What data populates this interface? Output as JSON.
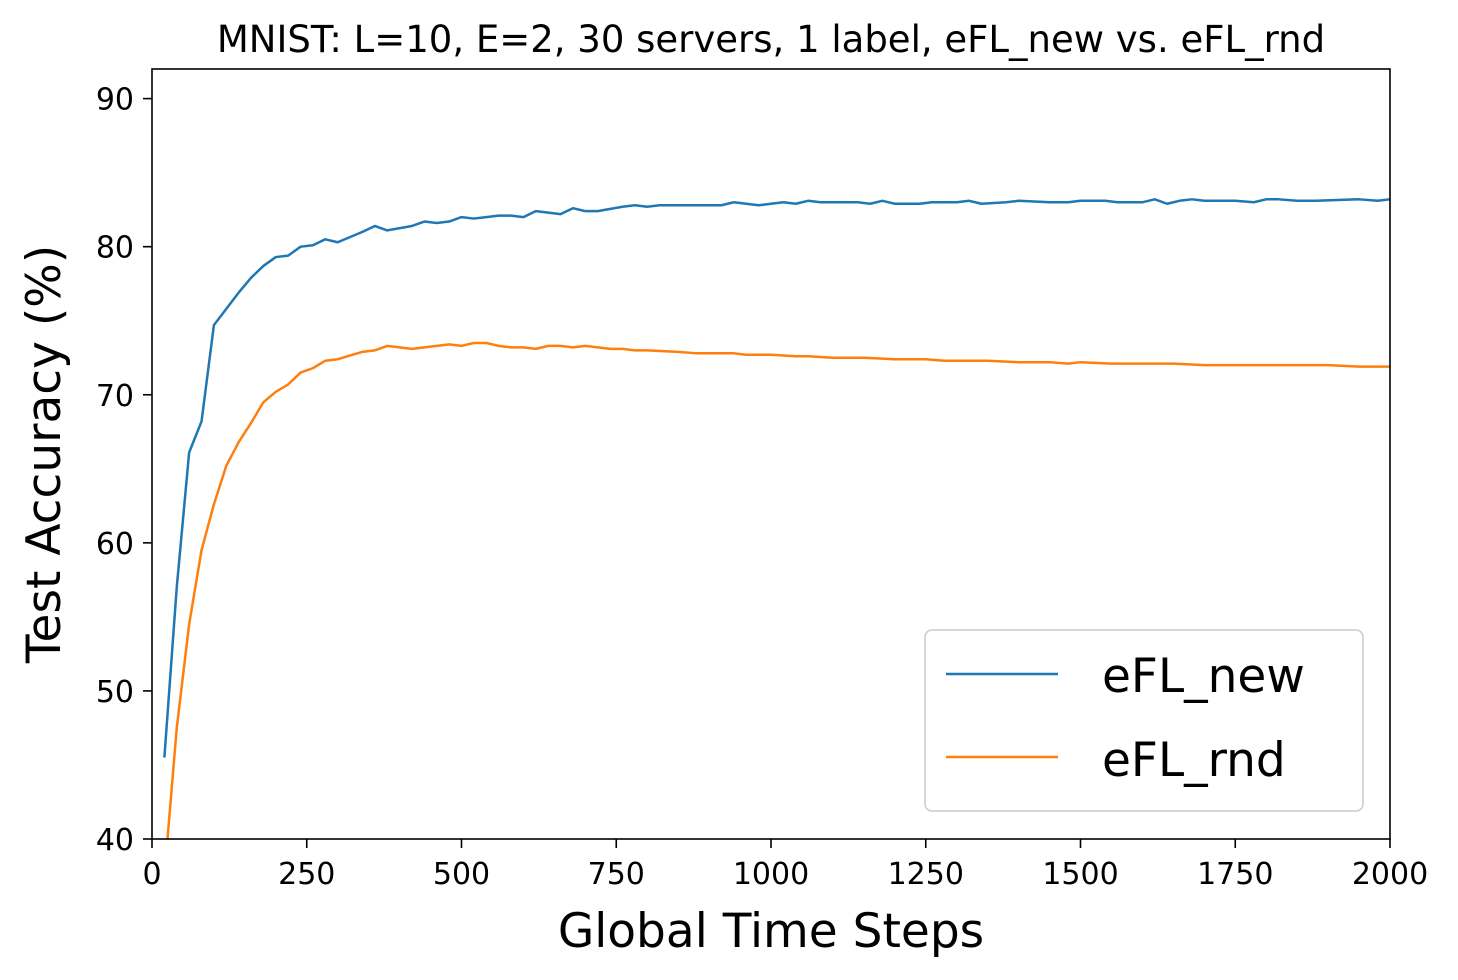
{
  "chart_data": {
    "type": "line",
    "title": "MNIST: L=10, E=2, 30 servers, 1 label, eFL_new vs. eFL_rnd",
    "xlabel": "Global Time Steps",
    "ylabel": "Test Accuracy (%)",
    "xlim": [
      0,
      2000
    ],
    "ylim": [
      40,
      92
    ],
    "xticks": [
      0,
      250,
      500,
      750,
      1000,
      1250,
      1500,
      1750,
      2000
    ],
    "yticks": [
      40,
      50,
      60,
      70,
      80,
      90
    ],
    "grid": false,
    "legend_position": "lower-right",
    "series": [
      {
        "name": "eFL_new",
        "color": "#1f77b4",
        "points": [
          [
            20,
            45.5
          ],
          [
            40,
            57.0
          ],
          [
            60,
            66.1
          ],
          [
            80,
            68.2
          ],
          [
            100,
            74.7
          ],
          [
            120,
            75.8
          ],
          [
            140,
            76.9
          ],
          [
            160,
            77.9
          ],
          [
            180,
            78.7
          ],
          [
            200,
            79.3
          ],
          [
            220,
            79.4
          ],
          [
            240,
            80.0
          ],
          [
            260,
            80.1
          ],
          [
            280,
            80.5
          ],
          [
            300,
            80.3
          ],
          [
            340,
            81.0
          ],
          [
            360,
            81.4
          ],
          [
            380,
            81.1
          ],
          [
            420,
            81.4
          ],
          [
            440,
            81.7
          ],
          [
            460,
            81.6
          ],
          [
            480,
            81.7
          ],
          [
            500,
            82.0
          ],
          [
            520,
            81.9
          ],
          [
            540,
            82.0
          ],
          [
            560,
            82.1
          ],
          [
            580,
            82.1
          ],
          [
            600,
            82.0
          ],
          [
            620,
            82.4
          ],
          [
            640,
            82.3
          ],
          [
            660,
            82.2
          ],
          [
            680,
            82.6
          ],
          [
            700,
            82.4
          ],
          [
            720,
            82.4
          ],
          [
            760,
            82.7
          ],
          [
            780,
            82.8
          ],
          [
            800,
            82.7
          ],
          [
            820,
            82.8
          ],
          [
            900,
            82.8
          ],
          [
            920,
            82.8
          ],
          [
            940,
            83.0
          ],
          [
            980,
            82.8
          ],
          [
            1000,
            82.9
          ],
          [
            1020,
            83.0
          ],
          [
            1040,
            82.9
          ],
          [
            1060,
            83.1
          ],
          [
            1080,
            83.0
          ],
          [
            1120,
            83.0
          ],
          [
            1140,
            83.0
          ],
          [
            1160,
            82.9
          ],
          [
            1180,
            83.1
          ],
          [
            1200,
            82.9
          ],
          [
            1240,
            82.9
          ],
          [
            1260,
            83.0
          ],
          [
            1300,
            83.0
          ],
          [
            1320,
            83.1
          ],
          [
            1340,
            82.9
          ],
          [
            1380,
            83.0
          ],
          [
            1400,
            83.1
          ],
          [
            1450,
            83.0
          ],
          [
            1480,
            83.0
          ],
          [
            1500,
            83.1
          ],
          [
            1540,
            83.1
          ],
          [
            1560,
            83.0
          ],
          [
            1600,
            83.0
          ],
          [
            1620,
            83.2
          ],
          [
            1640,
            82.9
          ],
          [
            1660,
            83.1
          ],
          [
            1680,
            83.2
          ],
          [
            1700,
            83.1
          ],
          [
            1750,
            83.1
          ],
          [
            1780,
            83.0
          ],
          [
            1800,
            83.2
          ],
          [
            1820,
            83.2
          ],
          [
            1850,
            83.1
          ],
          [
            1880,
            83.1
          ],
          [
            1950,
            83.2
          ],
          [
            1980,
            83.1
          ],
          [
            2000,
            83.2
          ]
        ]
      },
      {
        "name": "eFL_rnd",
        "color": "#ff7f0e",
        "points": [
          [
            25,
            40.0
          ],
          [
            40,
            47.5
          ],
          [
            60,
            54.5
          ],
          [
            80,
            59.5
          ],
          [
            100,
            62.6
          ],
          [
            120,
            65.2
          ],
          [
            140,
            66.8
          ],
          [
            160,
            68.1
          ],
          [
            180,
            69.5
          ],
          [
            200,
            70.2
          ],
          [
            220,
            70.7
          ],
          [
            240,
            71.5
          ],
          [
            260,
            71.8
          ],
          [
            280,
            72.3
          ],
          [
            300,
            72.4
          ],
          [
            340,
            72.9
          ],
          [
            360,
            73.0
          ],
          [
            380,
            73.3
          ],
          [
            420,
            73.1
          ],
          [
            440,
            73.2
          ],
          [
            460,
            73.3
          ],
          [
            480,
            73.4
          ],
          [
            500,
            73.3
          ],
          [
            520,
            73.5
          ],
          [
            540,
            73.5
          ],
          [
            560,
            73.3
          ],
          [
            580,
            73.2
          ],
          [
            600,
            73.2
          ],
          [
            620,
            73.1
          ],
          [
            640,
            73.3
          ],
          [
            660,
            73.3
          ],
          [
            680,
            73.2
          ],
          [
            700,
            73.3
          ],
          [
            740,
            73.1
          ],
          [
            760,
            73.1
          ],
          [
            780,
            73.0
          ],
          [
            800,
            73.0
          ],
          [
            850,
            72.9
          ],
          [
            880,
            72.8
          ],
          [
            900,
            72.8
          ],
          [
            940,
            72.8
          ],
          [
            960,
            72.7
          ],
          [
            1000,
            72.7
          ],
          [
            1040,
            72.6
          ],
          [
            1060,
            72.6
          ],
          [
            1100,
            72.5
          ],
          [
            1150,
            72.5
          ],
          [
            1200,
            72.4
          ],
          [
            1250,
            72.4
          ],
          [
            1280,
            72.3
          ],
          [
            1300,
            72.3
          ],
          [
            1350,
            72.3
          ],
          [
            1400,
            72.2
          ],
          [
            1450,
            72.2
          ],
          [
            1480,
            72.1
          ],
          [
            1500,
            72.2
          ],
          [
            1550,
            72.1
          ],
          [
            1600,
            72.1
          ],
          [
            1650,
            72.1
          ],
          [
            1700,
            72.0
          ],
          [
            1750,
            72.0
          ],
          [
            1800,
            72.0
          ],
          [
            1850,
            72.0
          ],
          [
            1900,
            72.0
          ],
          [
            1950,
            71.9
          ],
          [
            2000,
            71.9
          ]
        ]
      }
    ]
  }
}
